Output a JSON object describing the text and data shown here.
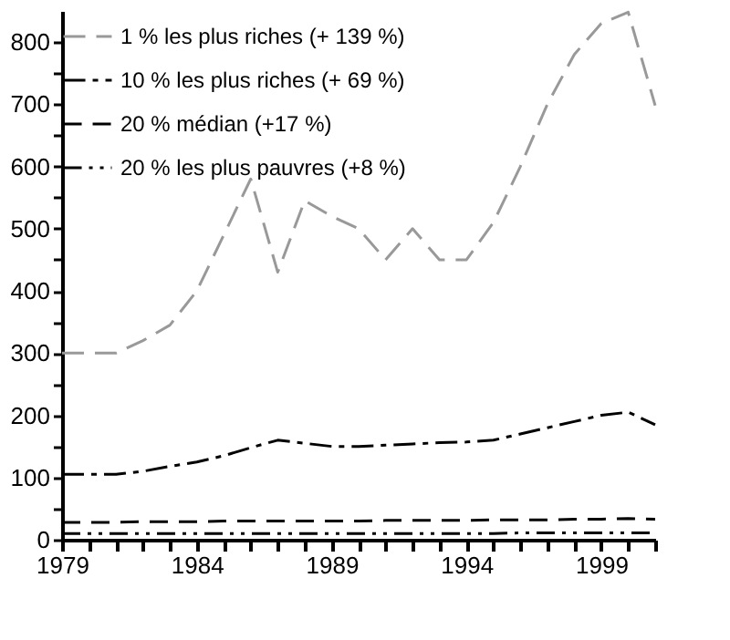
{
  "chart_data": {
    "type": "line",
    "grid": false,
    "legend": "top left",
    "xlim": [
      1979,
      2001
    ],
    "ylim": [
      0,
      850
    ],
    "xticks": [
      1979,
      {
        "value": 1980,
        "label": null
      },
      {
        "value": 1981,
        "label": null
      },
      {
        "value": 1982,
        "label": null
      },
      {
        "value": 1983,
        "label": null
      },
      1984,
      {
        "value": 1985,
        "label": null
      },
      {
        "value": 1986,
        "label": null
      },
      {
        "value": 1987,
        "label": null
      },
      {
        "value": 1988,
        "label": null
      },
      1989,
      {
        "value": 1990,
        "label": null
      },
      {
        "value": 1991,
        "label": null
      },
      {
        "value": 1992,
        "label": null
      },
      {
        "value": 1993,
        "label": null
      },
      1994,
      {
        "value": 1995,
        "label": null
      },
      {
        "value": 1996,
        "label": null
      },
      {
        "value": 1997,
        "label": null
      },
      {
        "value": 1998,
        "label": null
      },
      1999,
      {
        "value": 2000,
        "label": null
      },
      {
        "value": 2001,
        "label": null
      }
    ],
    "yticks": [
      0,
      {
        "value": 50,
        "label": null
      },
      100,
      {
        "value": 150,
        "label": null
      },
      200,
      {
        "value": 250,
        "label": null
      },
      300,
      {
        "value": 350,
        "label": null
      },
      400,
      {
        "value": 450,
        "label": null
      },
      500,
      {
        "value": 550,
        "label": null
      },
      600,
      {
        "value": 650,
        "label": null
      },
      700,
      {
        "value": 750,
        "label": null
      },
      800
    ],
    "x": [
      1979,
      1980,
      1981,
      1982,
      1983,
      1984,
      1985,
      1986,
      1987,
      1988,
      1989,
      1990,
      1991,
      1992,
      1993,
      1994,
      1995,
      1996,
      1997,
      1998,
      1999,
      2000,
      2001
    ],
    "series": [
      {
        "name": "1 % les plus riches (+ 139 %)",
        "color": "#999999",
        "line_style": "dashed",
        "values": [
          300,
          300,
          300,
          320,
          345,
          400,
          490,
          580,
          430,
          545,
          520,
          500,
          450,
          500,
          450,
          450,
          510,
          600,
          700,
          780,
          830,
          848,
          698
        ]
      },
      {
        "name": "10 % les plus riches (+ 69 %)",
        "color": "#000000",
        "line_style": "dashed",
        "values": [
          105,
          105,
          105,
          110,
          118,
          125,
          135,
          148,
          160,
          155,
          150,
          150,
          152,
          154,
          156,
          157,
          160,
          170,
          180,
          190,
          200,
          205,
          185
        ]
      },
      {
        "name": "20 % médian (+17 %)",
        "color": "#000000",
        "line_style": "dashed",
        "values": [
          28,
          28,
          28,
          29,
          29,
          29,
          30,
          30,
          30,
          30,
          30,
          30,
          31,
          31,
          31,
          31,
          32,
          32,
          32,
          33,
          33,
          34,
          33
        ]
      },
      {
        "name": "20 % les plus pauvres (+8 %)",
        "color": "#000000",
        "line_style": "dotted",
        "values": [
          10,
          10,
          10,
          10,
          10,
          10,
          10,
          10,
          10,
          10,
          10,
          10,
          10,
          10,
          10,
          10,
          10,
          11,
          11,
          11,
          11,
          11,
          11
        ]
      }
    ]
  }
}
